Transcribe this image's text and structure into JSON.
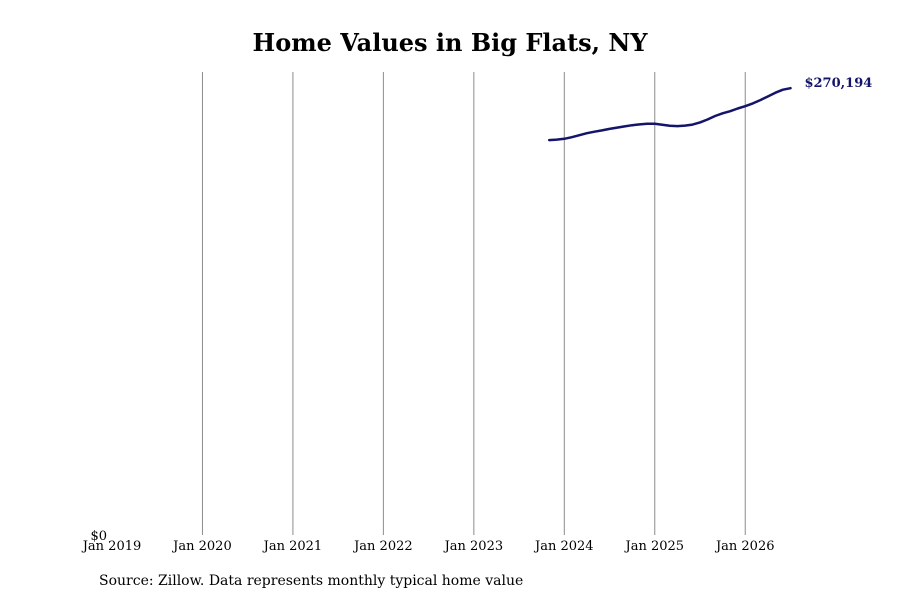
{
  "chart_data": {
    "type": "line",
    "title": "Home Values in Big Flats, NY",
    "source": "Source: Zillow. Data represents monthly typical home value",
    "x_tick_labels": [
      "Jan 2019",
      "Jan 2020",
      "Jan 2021",
      "Jan 2022",
      "Jan 2023",
      "Jan 2024",
      "Jan 2025",
      "Jan 2026"
    ],
    "y_tick_labels": [
      "$0"
    ],
    "xlim": [
      "2019-01",
      "2026-08"
    ],
    "ylim": [
      0,
      280000
    ],
    "grid": "vertical",
    "line_color": "#14146b",
    "end_label": "$270,194",
    "series": [
      {
        "x": [
          "2023-11",
          "2023-12",
          "2024-01",
          "2024-02",
          "2024-03",
          "2024-04",
          "2024-05",
          "2024-06",
          "2024-07",
          "2024-08",
          "2024-09",
          "2024-10",
          "2024-11",
          "2024-12",
          "2025-01",
          "2025-02",
          "2025-03",
          "2025-04",
          "2025-05",
          "2025-06",
          "2025-07",
          "2025-08",
          "2025-09",
          "2025-10",
          "2025-11",
          "2025-12",
          "2026-01",
          "2026-02",
          "2026-03",
          "2026-04",
          "2026-05",
          "2026-06",
          "2026-07"
        ],
        "values": [
          238800,
          239100,
          239600,
          240600,
          241800,
          243000,
          243900,
          244700,
          245600,
          246400,
          247100,
          247800,
          248300,
          248700,
          248700,
          248100,
          247500,
          247300,
          247600,
          248200,
          249500,
          251300,
          253400,
          255000,
          256300,
          257900,
          259300,
          261000,
          263000,
          265200,
          267500,
          269300,
          270194
        ]
      }
    ]
  }
}
